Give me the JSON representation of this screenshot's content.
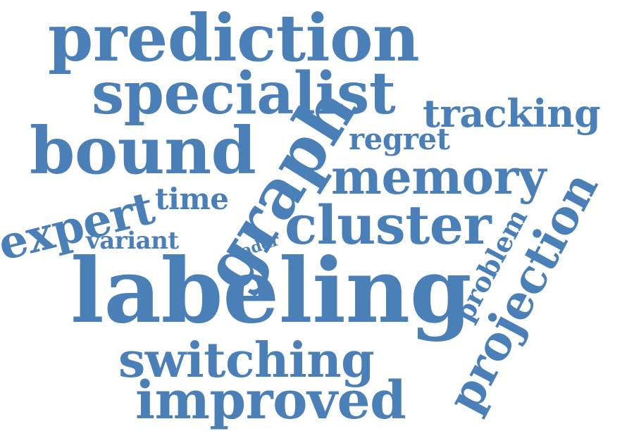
{
  "word_color": "#4a7fb7",
  "words": [
    {
      "text": "prediction",
      "name": "word-prediction"
    },
    {
      "text": "specialist",
      "name": "word-specialist"
    },
    {
      "text": "tracking",
      "name": "word-tracking"
    },
    {
      "text": "bound",
      "name": "word-bound"
    },
    {
      "text": "regret",
      "name": "word-regret"
    },
    {
      "text": "graph",
      "name": "word-graph"
    },
    {
      "text": "memory",
      "name": "word-memory"
    },
    {
      "text": "time",
      "name": "word-time"
    },
    {
      "text": "expert",
      "name": "word-expert"
    },
    {
      "text": "variant",
      "name": "word-variant"
    },
    {
      "text": "addr",
      "name": "word-addr"
    },
    {
      "text": "cluster",
      "name": "word-cluster"
    },
    {
      "text": "problem",
      "name": "word-problem"
    },
    {
      "text": "projection",
      "name": "word-projection"
    },
    {
      "text": "labeling",
      "name": "word-labeling"
    },
    {
      "text": "switching",
      "name": "word-switching"
    },
    {
      "text": "improved",
      "name": "word-improved"
    }
  ]
}
